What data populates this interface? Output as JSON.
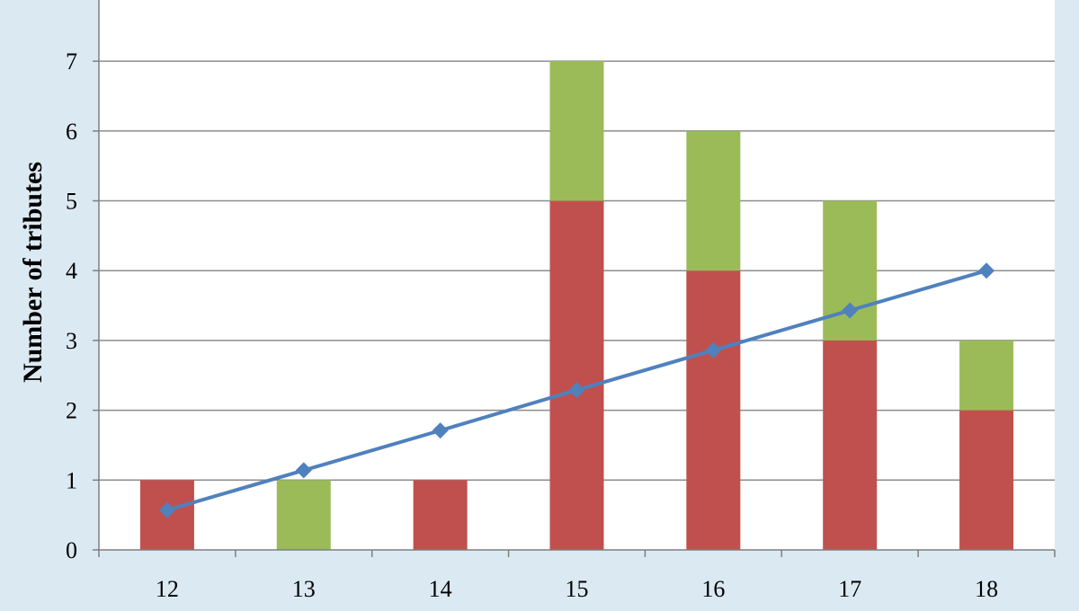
{
  "colors": {
    "background": "#dbe9f2",
    "plot_area": "#ffffff",
    "gridline": "#8c8c8c",
    "axis": "#7f7f7f"
  },
  "chart_data": {
    "type": "bar",
    "stacked": true,
    "categories": [
      "12",
      "13",
      "14",
      "15",
      "16",
      "17",
      "18"
    ],
    "series": [
      {
        "kind": "bar",
        "color": "#c0504d",
        "values": [
          1,
          0,
          1,
          5,
          4,
          3,
          2
        ]
      },
      {
        "kind": "bar",
        "color": "#9bbb59",
        "values": [
          0,
          1,
          0,
          2,
          2,
          2,
          1
        ]
      },
      {
        "kind": "line",
        "color": "#4f81bd",
        "marker": "diamond",
        "values": [
          0.57,
          1.14,
          1.71,
          2.29,
          2.86,
          3.43,
          4.0
        ]
      }
    ],
    "title": "",
    "xlabel": "",
    "ylabel": "Number of tributes",
    "ylim": [
      0,
      8
    ],
    "yticks": [
      "0",
      "1",
      "2",
      "3",
      "4",
      "5",
      "6",
      "7"
    ],
    "grid": true,
    "legend": "none"
  }
}
